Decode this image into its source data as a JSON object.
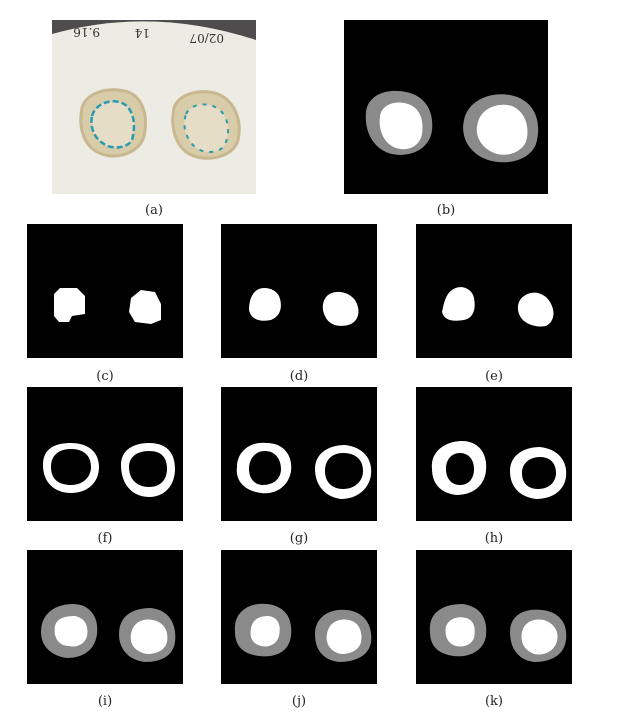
{
  "figure": {
    "captions": [
      "(a)",
      "(b)",
      "(c)",
      "(d)",
      "(e)",
      "(f)",
      "(g)",
      "(h)",
      "(i)",
      "(j)",
      "(k)"
    ],
    "photo": {
      "handwriting": [
        "9.16",
        "14",
        "02/07"
      ]
    }
  },
  "colors": {
    "background": "#000000",
    "mask_white": "#ffffff",
    "ring_gray": "#8a8a8a",
    "paper": "#ecebe4",
    "photo_frame": "#4f4c4d",
    "halo": "#d8cca9",
    "blue_stain": "#2a9bb0"
  }
}
